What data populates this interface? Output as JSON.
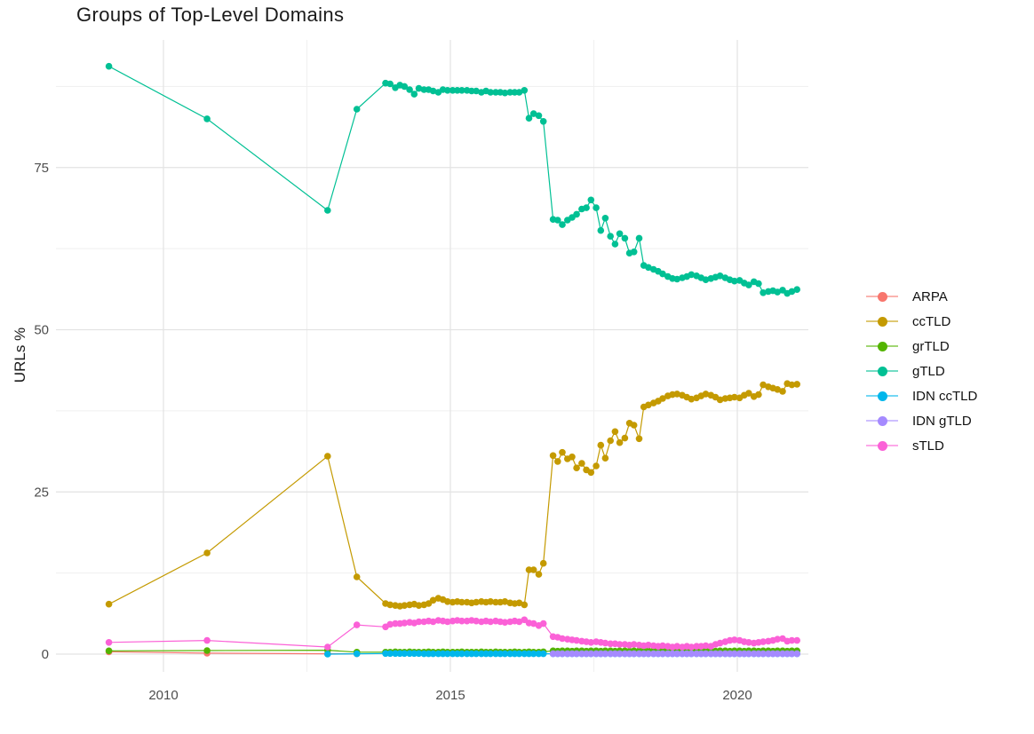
{
  "title": "Groups of Top-Level Domains",
  "axes": {
    "y_label": "URLs %",
    "y_ticks": [
      {
        "v": 0,
        "label": "0"
      },
      {
        "v": 25,
        "label": "25"
      },
      {
        "v": 50,
        "label": "50"
      },
      {
        "v": 75,
        "label": "75"
      }
    ],
    "x_ticks": [
      {
        "v": 2010,
        "label": "2010"
      },
      {
        "v": 2015,
        "label": "2015"
      },
      {
        "v": 2020,
        "label": "2020"
      }
    ],
    "x_minor": [
      2012.5,
      2017.5
    ],
    "y_minor": [
      12.5,
      37.5,
      62.5,
      87.5
    ],
    "grid_major_color": "#e3e3e3",
    "grid_minor_color": "#efefef",
    "tick_color": "#4d4d4d"
  },
  "legend": {
    "items": [
      {
        "label": "ARPA",
        "color": "#F8766D"
      },
      {
        "label": "ccTLD",
        "color": "#C49A00"
      },
      {
        "label": "grTLD",
        "color": "#53B400"
      },
      {
        "label": "gTLD",
        "color": "#00C094"
      },
      {
        "label": "IDN ccTLD",
        "color": "#00B6EB"
      },
      {
        "label": "IDN gTLD",
        "color": "#A58AFF"
      },
      {
        "label": "sTLD",
        "color": "#FB61D7"
      }
    ]
  },
  "chart_data": {
    "type": "line",
    "title": "Groups of Top-Level Domains",
    "xlabel": "",
    "ylabel": "URLs %",
    "xlim": [
      2008.1,
      2021.3
    ],
    "ylim": [
      -2.5,
      94.7
    ],
    "grid": true,
    "legend_position": "right",
    "series": [
      {
        "name": "ARPA",
        "color": "#F8766D",
        "x": [
          2009.05,
          2010.76,
          2012.86,
          2013.37
        ],
        "y": [
          0.35,
          0.15,
          0.05,
          0.05
        ]
      },
      {
        "name": "ccTLD",
        "color": "#C49A00",
        "x": [
          2009.05,
          2010.76,
          2012.86,
          2013.37,
          2013.87,
          2013.95,
          2014.04,
          2014.12,
          2014.2,
          2014.29,
          2014.37,
          2014.45,
          2014.54,
          2014.62,
          2014.7,
          2014.79,
          2014.87,
          2014.95,
          2015.04,
          2015.12,
          2015.2,
          2015.29,
          2015.37,
          2015.45,
          2015.54,
          2015.62,
          2015.7,
          2015.79,
          2015.87,
          2015.95,
          2016.04,
          2016.12,
          2016.2,
          2016.29,
          2016.37,
          2016.45,
          2016.54,
          2016.62,
          2016.79,
          2016.87,
          2016.95,
          2017.04,
          2017.12,
          2017.2,
          2017.29,
          2017.37,
          2017.45,
          2017.54,
          2017.62,
          2017.7,
          2017.79,
          2017.87,
          2017.95,
          2018.04,
          2018.12,
          2018.2,
          2018.29,
          2018.37,
          2018.45,
          2018.54,
          2018.62,
          2018.7,
          2018.79,
          2018.87,
          2018.95,
          2019.04,
          2019.12,
          2019.2,
          2019.29,
          2019.37,
          2019.45,
          2019.54,
          2019.62,
          2019.7,
          2019.79,
          2019.87,
          2019.95,
          2020.04,
          2020.12,
          2020.2,
          2020.29,
          2020.37,
          2020.45,
          2020.54,
          2020.62,
          2020.7,
          2020.79,
          2020.87,
          2020.95,
          2021.04
        ],
        "y": [
          7.7,
          15.6,
          30.5,
          11.9,
          7.8,
          7.6,
          7.5,
          7.4,
          7.5,
          7.6,
          7.7,
          7.5,
          7.6,
          7.8,
          8.3,
          8.6,
          8.4,
          8.1,
          8.0,
          8.1,
          8.0,
          8.0,
          7.9,
          8.0,
          8.1,
          8.0,
          8.1,
          8.0,
          8.0,
          8.1,
          7.9,
          7.8,
          7.9,
          7.6,
          13.0,
          13.0,
          12.3,
          14.0,
          30.6,
          29.7,
          31.1,
          30.1,
          30.4,
          28.7,
          29.4,
          28.4,
          28.0,
          29.0,
          32.2,
          30.2,
          32.9,
          34.3,
          32.6,
          33.3,
          35.6,
          35.3,
          33.2,
          38.1,
          38.4,
          38.7,
          39.0,
          39.4,
          39.8,
          40.0,
          40.1,
          39.9,
          39.6,
          39.3,
          39.5,
          39.8,
          40.1,
          39.9,
          39.6,
          39.2,
          39.4,
          39.5,
          39.6,
          39.5,
          39.9,
          40.2,
          39.7,
          40.0,
          41.5,
          41.2,
          41.0,
          40.8,
          40.5,
          41.7,
          41.5,
          41.6
        ]
      },
      {
        "name": "grTLD",
        "color": "#53B400",
        "x": [
          2009.05,
          2010.76,
          2012.86,
          2013.37,
          2013.87,
          2013.95,
          2014.04,
          2014.12,
          2014.2,
          2014.29,
          2014.37,
          2014.45,
          2014.54,
          2014.62,
          2014.7,
          2014.79,
          2014.87,
          2014.95,
          2015.04,
          2015.12,
          2015.2,
          2015.29,
          2015.37,
          2015.45,
          2015.54,
          2015.62,
          2015.7,
          2015.79,
          2015.87,
          2015.95,
          2016.04,
          2016.12,
          2016.2,
          2016.29,
          2016.37,
          2016.45,
          2016.54,
          2016.62,
          2016.79,
          2016.87,
          2016.95,
          2017.04,
          2017.12,
          2017.2,
          2017.29,
          2017.37,
          2017.45,
          2017.54,
          2017.62,
          2017.7,
          2017.79,
          2017.87,
          2017.95,
          2018.04,
          2018.12,
          2018.2,
          2018.29,
          2018.37,
          2018.45,
          2018.54,
          2018.62,
          2018.7,
          2018.79,
          2018.87,
          2018.95,
          2019.04,
          2019.12,
          2019.2,
          2019.29,
          2019.37,
          2019.45,
          2019.54,
          2019.62,
          2019.7,
          2019.79,
          2019.87,
          2019.95,
          2020.04,
          2020.12,
          2020.2,
          2020.29,
          2020.37,
          2020.45,
          2020.54,
          2020.62,
          2020.7,
          2020.79,
          2020.87,
          2020.95,
          2021.04
        ],
        "y": [
          0.5,
          0.55,
          0.6,
          0.3,
          0.3,
          0.3,
          0.35,
          0.3,
          0.3,
          0.35,
          0.3,
          0.3,
          0.3,
          0.35,
          0.3,
          0.3,
          0.35,
          0.3,
          0.3,
          0.3,
          0.35,
          0.3,
          0.3,
          0.3,
          0.35,
          0.3,
          0.3,
          0.35,
          0.3,
          0.3,
          0.3,
          0.35,
          0.3,
          0.3,
          0.35,
          0.3,
          0.3,
          0.35,
          0.5,
          0.45,
          0.5,
          0.5,
          0.45,
          0.5,
          0.5,
          0.45,
          0.5,
          0.5,
          0.45,
          0.5,
          0.5,
          0.45,
          0.5,
          0.5,
          0.45,
          0.5,
          0.5,
          0.45,
          0.5,
          0.5,
          0.45,
          0.5,
          0.5,
          0.45,
          0.5,
          0.5,
          0.45,
          0.5,
          0.5,
          0.45,
          0.5,
          0.5,
          0.45,
          0.5,
          0.5,
          0.45,
          0.5,
          0.5,
          0.45,
          0.5,
          0.5,
          0.45,
          0.5,
          0.5,
          0.45,
          0.5,
          0.5,
          0.45,
          0.5,
          0.5
        ]
      },
      {
        "name": "gTLD",
        "color": "#00C094",
        "x": [
          2009.05,
          2010.76,
          2012.86,
          2013.37,
          2013.87,
          2013.95,
          2014.04,
          2014.12,
          2014.2,
          2014.29,
          2014.37,
          2014.45,
          2014.54,
          2014.62,
          2014.7,
          2014.79,
          2014.87,
          2014.95,
          2015.04,
          2015.12,
          2015.2,
          2015.29,
          2015.37,
          2015.45,
          2015.54,
          2015.62,
          2015.7,
          2015.79,
          2015.87,
          2015.95,
          2016.04,
          2016.12,
          2016.2,
          2016.29,
          2016.37,
          2016.45,
          2016.54,
          2016.62,
          2016.79,
          2016.87,
          2016.95,
          2017.04,
          2017.12,
          2017.2,
          2017.29,
          2017.37,
          2017.45,
          2017.54,
          2017.62,
          2017.7,
          2017.79,
          2017.87,
          2017.95,
          2018.04,
          2018.12,
          2018.2,
          2018.29,
          2018.37,
          2018.45,
          2018.54,
          2018.62,
          2018.7,
          2018.79,
          2018.87,
          2018.95,
          2019.04,
          2019.12,
          2019.2,
          2019.29,
          2019.37,
          2019.45,
          2019.54,
          2019.62,
          2019.7,
          2019.79,
          2019.87,
          2019.95,
          2020.04,
          2020.12,
          2020.2,
          2020.29,
          2020.37,
          2020.45,
          2020.54,
          2020.62,
          2020.7,
          2020.79,
          2020.87,
          2020.95,
          2021.04
        ],
        "y": [
          90.6,
          82.5,
          68.4,
          84.0,
          88.0,
          87.9,
          87.3,
          87.7,
          87.5,
          87.0,
          86.3,
          87.2,
          87.0,
          87.0,
          86.8,
          86.6,
          87.0,
          86.9,
          86.9,
          86.9,
          86.9,
          86.9,
          86.8,
          86.8,
          86.6,
          86.8,
          86.6,
          86.6,
          86.6,
          86.5,
          86.6,
          86.6,
          86.6,
          86.9,
          82.6,
          83.3,
          83.0,
          82.1,
          67.0,
          66.9,
          66.2,
          66.9,
          67.3,
          67.8,
          68.6,
          68.8,
          70.0,
          68.8,
          65.3,
          67.2,
          64.4,
          63.2,
          64.8,
          64.1,
          61.8,
          62.0,
          64.1,
          59.9,
          59.6,
          59.3,
          59.0,
          58.6,
          58.2,
          57.9,
          57.8,
          58.0,
          58.2,
          58.5,
          58.3,
          58.0,
          57.7,
          57.9,
          58.1,
          58.3,
          58.0,
          57.7,
          57.5,
          57.6,
          57.2,
          56.9,
          57.4,
          57.1,
          55.7,
          55.9,
          56.0,
          55.8,
          56.1,
          55.6,
          55.9,
          56.2
        ]
      },
      {
        "name": "IDN ccTLD",
        "color": "#00B6EB",
        "x": [
          2012.86,
          2013.37,
          2013.87,
          2013.95,
          2014.04,
          2014.12,
          2014.2,
          2014.29,
          2014.37,
          2014.45,
          2014.54,
          2014.62,
          2014.7,
          2014.79,
          2014.87,
          2014.95,
          2015.04,
          2015.12,
          2015.2,
          2015.29,
          2015.37,
          2015.45,
          2015.54,
          2015.62,
          2015.7,
          2015.79,
          2015.87,
          2015.95,
          2016.04,
          2016.12,
          2016.2,
          2016.29,
          2016.37,
          2016.45,
          2016.54,
          2016.62,
          2016.79,
          2016.87,
          2016.95,
          2017.04,
          2017.12,
          2017.2,
          2017.29,
          2017.37,
          2017.45,
          2017.54,
          2017.62,
          2017.7,
          2017.79,
          2017.87,
          2017.95,
          2018.04,
          2018.12,
          2018.2,
          2018.29,
          2018.37,
          2018.45,
          2018.54,
          2018.62,
          2018.7,
          2018.79,
          2018.87,
          2018.95,
          2019.04,
          2019.12,
          2019.2,
          2019.29,
          2019.37,
          2019.45,
          2019.54,
          2019.62,
          2019.7,
          2019.79,
          2019.87,
          2019.95,
          2020.04,
          2020.12,
          2020.2,
          2020.29,
          2020.37,
          2020.45,
          2020.54,
          2020.62,
          2020.7,
          2020.79,
          2020.87,
          2020.95,
          2021.04
        ],
        "y": [
          0.0,
          0.05,
          0.1,
          0.1,
          0.1,
          0.1,
          0.1,
          0.1,
          0.1,
          0.1,
          0.05,
          0.05,
          0.05,
          0.05,
          0.05,
          0.05,
          0.05,
          0.05,
          0.05,
          0.05,
          0.05,
          0.05,
          0.05,
          0.05,
          0.05,
          0.05,
          0.05,
          0.05,
          0.05,
          0.05,
          0.05,
          0.05,
          0.05,
          0.05,
          0.05,
          0.05,
          0.05,
          0.05,
          0.05,
          0.05,
          0.05,
          0.05,
          0.05,
          0.05,
          0.05,
          0.05,
          0.05,
          0.05,
          0.05,
          0.05,
          0.05,
          0.05,
          0.05,
          0.05,
          0.05,
          0.05,
          0.05,
          0.05,
          0.05,
          0.05,
          0.05,
          0.05,
          0.05,
          0.05,
          0.05,
          0.05,
          0.05,
          0.05,
          0.05,
          0.05,
          0.05,
          0.05,
          0.05,
          0.05,
          0.05,
          0.05,
          0.05,
          0.05,
          0.05,
          0.05,
          0.05,
          0.05,
          0.05,
          0.05,
          0.05,
          0.05,
          0.05,
          0.05
        ]
      },
      {
        "name": "IDN gTLD",
        "color": "#A58AFF",
        "x": [
          2016.79,
          2016.87,
          2016.95,
          2017.04,
          2017.12,
          2017.2,
          2017.29,
          2017.37,
          2017.45,
          2017.54,
          2017.62,
          2017.7,
          2017.79,
          2017.87,
          2017.95,
          2018.04,
          2018.12,
          2018.2,
          2018.29,
          2018.37,
          2018.45,
          2018.54,
          2018.62,
          2018.7,
          2018.79,
          2018.87,
          2018.95,
          2019.04,
          2019.12,
          2019.2,
          2019.29,
          2019.37,
          2019.45,
          2019.54,
          2019.62,
          2019.7,
          2019.79,
          2019.87,
          2019.95,
          2020.04,
          2020.12,
          2020.2,
          2020.29,
          2020.37,
          2020.45,
          2020.54,
          2020.62,
          2020.7,
          2020.79,
          2020.87,
          2020.95,
          2021.04
        ],
        "y": [
          0.05,
          0.05,
          0.05,
          0.05,
          0.05,
          0.05,
          0.05,
          0.05,
          0.05,
          0.05,
          0.05,
          0.05,
          0.05,
          0.05,
          0.05,
          0.05,
          0.05,
          0.05,
          0.05,
          0.05,
          0.05,
          0.05,
          0.05,
          0.05,
          0.05,
          0.05,
          0.05,
          0.05,
          0.05,
          0.05,
          0.05,
          0.05,
          0.05,
          0.05,
          0.05,
          0.05,
          0.05,
          0.05,
          0.05,
          0.05,
          0.05,
          0.05,
          0.05,
          0.05,
          0.05,
          0.05,
          0.05,
          0.05,
          0.05,
          0.05,
          0.05,
          0.05
        ]
      },
      {
        "name": "sTLD",
        "color": "#FB61D7",
        "x": [
          2009.05,
          2010.76,
          2012.86,
          2013.37,
          2013.87,
          2013.95,
          2014.04,
          2014.12,
          2014.2,
          2014.29,
          2014.37,
          2014.45,
          2014.54,
          2014.62,
          2014.7,
          2014.79,
          2014.87,
          2014.95,
          2015.04,
          2015.12,
          2015.2,
          2015.29,
          2015.37,
          2015.45,
          2015.54,
          2015.62,
          2015.7,
          2015.79,
          2015.87,
          2015.95,
          2016.04,
          2016.12,
          2016.2,
          2016.29,
          2016.37,
          2016.45,
          2016.54,
          2016.62,
          2016.79,
          2016.87,
          2016.95,
          2017.04,
          2017.12,
          2017.2,
          2017.29,
          2017.37,
          2017.45,
          2017.54,
          2017.62,
          2017.7,
          2017.79,
          2017.87,
          2017.95,
          2018.04,
          2018.12,
          2018.2,
          2018.29,
          2018.37,
          2018.45,
          2018.54,
          2018.62,
          2018.7,
          2018.79,
          2018.87,
          2018.95,
          2019.04,
          2019.12,
          2019.2,
          2019.29,
          2019.37,
          2019.45,
          2019.54,
          2019.62,
          2019.7,
          2019.79,
          2019.87,
          2019.95,
          2020.04,
          2020.12,
          2020.2,
          2020.29,
          2020.37,
          2020.45,
          2020.54,
          2020.62,
          2020.7,
          2020.79,
          2020.87,
          2020.95,
          2021.04
        ],
        "y": [
          1.8,
          2.1,
          1.1,
          4.5,
          4.2,
          4.6,
          4.7,
          4.7,
          4.8,
          4.9,
          4.8,
          5.0,
          5.0,
          5.1,
          5.0,
          5.2,
          5.1,
          5.0,
          5.1,
          5.2,
          5.1,
          5.1,
          5.2,
          5.1,
          5.0,
          5.1,
          5.0,
          5.1,
          5.0,
          4.9,
          5.0,
          5.1,
          5.0,
          5.3,
          4.8,
          4.7,
          4.4,
          4.7,
          2.7,
          2.6,
          2.4,
          2.3,
          2.2,
          2.1,
          2.0,
          1.9,
          1.8,
          1.9,
          1.8,
          1.7,
          1.6,
          1.6,
          1.5,
          1.5,
          1.4,
          1.5,
          1.4,
          1.3,
          1.4,
          1.3,
          1.2,
          1.3,
          1.2,
          1.1,
          1.2,
          1.1,
          1.2,
          1.1,
          1.2,
          1.2,
          1.3,
          1.2,
          1.5,
          1.7,
          1.9,
          2.1,
          2.2,
          2.1,
          1.9,
          1.8,
          1.7,
          1.8,
          1.9,
          2.0,
          2.1,
          2.3,
          2.4,
          2.0,
          2.1,
          2.1
        ]
      }
    ]
  }
}
